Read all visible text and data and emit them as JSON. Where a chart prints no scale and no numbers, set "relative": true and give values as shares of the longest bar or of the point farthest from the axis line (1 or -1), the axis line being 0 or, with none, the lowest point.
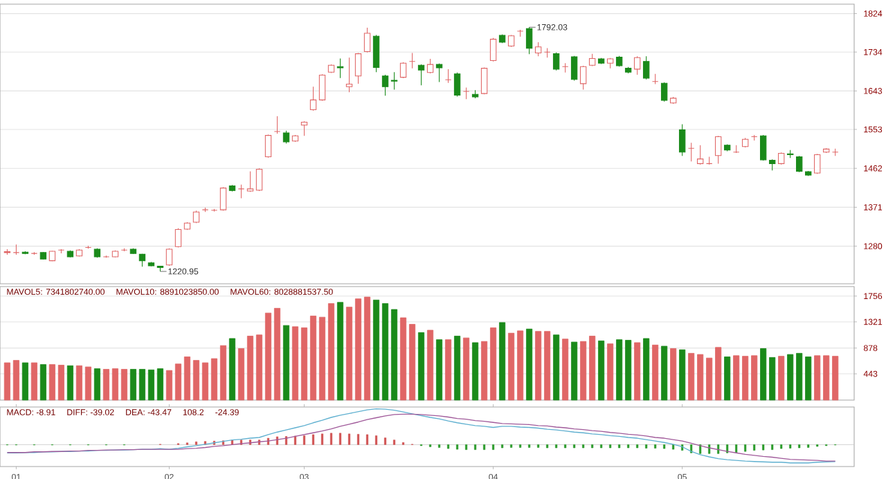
{
  "chart_data": [
    {
      "type": "candlestick",
      "categories": [
        null,
        "01",
        null,
        null,
        null,
        null,
        null,
        null,
        null,
        null,
        null,
        null,
        null,
        null,
        null,
        null,
        null,
        null,
        "02",
        null,
        null,
        null,
        null,
        null,
        null,
        null,
        null,
        null,
        null,
        null,
        null,
        null,
        null,
        "03",
        null,
        null,
        null,
        null,
        null,
        null,
        null,
        null,
        null,
        null,
        null,
        null,
        null,
        null,
        null,
        null,
        null,
        null,
        null,
        null,
        "04",
        null,
        null,
        null,
        null,
        null,
        null,
        null,
        null,
        null,
        null,
        null,
        null,
        null,
        null,
        null,
        null,
        null,
        null,
        null,
        null,
        "05",
        null,
        null,
        null,
        null,
        null,
        null,
        null,
        null,
        null,
        null,
        null,
        null,
        null,
        null,
        null,
        null,
        null
      ],
      "ohlc": [
        [
          1265,
          1273,
          1260,
          1267
        ],
        [
          1265,
          1284,
          1260,
          1265
        ],
        [
          1266,
          1268,
          1261,
          1263
        ],
        [
          1263,
          1266,
          1260,
          1263
        ],
        [
          1265,
          1266,
          1249,
          1250
        ],
        [
          1246,
          1269,
          1245,
          1268
        ],
        [
          1271,
          1273,
          1263,
          1271
        ],
        [
          1268,
          1270,
          1254,
          1255
        ],
        [
          1257,
          1273,
          1256,
          1271
        ],
        [
          1277,
          1281,
          1274,
          1277
        ],
        [
          1273,
          1275,
          1253,
          1255
        ],
        [
          1255,
          1258,
          1253,
          1255
        ],
        [
          1255,
          1270,
          1254,
          1268
        ],
        [
          1271,
          1275,
          1268,
          1271
        ],
        [
          1273,
          1275,
          1262,
          1263
        ],
        [
          1261,
          1262,
          1232,
          1246
        ],
        [
          1241,
          1243,
          1233,
          1234
        ],
        [
          1233,
          1234,
          1220.95,
          1230
        ],
        [
          1236,
          1275,
          1234,
          1273
        ],
        [
          1279,
          1322,
          1277,
          1319
        ],
        [
          1320,
          1336,
          1318,
          1334
        ],
        [
          1336,
          1363,
          1334,
          1360
        ],
        [
          1365,
          1370,
          1360,
          1365
        ],
        [
          1364,
          1367,
          1361,
          1364
        ],
        [
          1365,
          1418,
          1363,
          1416
        ],
        [
          1421,
          1423,
          1408,
          1410
        ],
        [
          1414,
          1424,
          1392,
          1414
        ],
        [
          1409,
          1455,
          1407,
          1414
        ],
        [
          1411,
          1462,
          1409,
          1460
        ],
        [
          1489,
          1541,
          1487,
          1539
        ],
        [
          1548,
          1584,
          1543,
          1548
        ],
        [
          1545,
          1550,
          1520,
          1524
        ],
        [
          1526,
          1540,
          1524,
          1538
        ],
        [
          1563,
          1572,
          1538,
          1570
        ],
        [
          1599,
          1653,
          1597,
          1622
        ],
        [
          1622,
          1682,
          1620,
          1680
        ],
        [
          1687,
          1705,
          1685,
          1703
        ],
        [
          1700,
          1719,
          1673,
          1697
        ],
        [
          1653,
          1721,
          1640,
          1659
        ],
        [
          1678,
          1732,
          1660,
          1730
        ],
        [
          1735,
          1791,
          1733,
          1778
        ],
        [
          1771,
          1774,
          1687,
          1698
        ],
        [
          1678,
          1681,
          1632,
          1653
        ],
        [
          1668,
          1687,
          1646,
          1666
        ],
        [
          1675,
          1710,
          1673,
          1708
        ],
        [
          1712,
          1732,
          1696,
          1712
        ],
        [
          1703,
          1705,
          1656,
          1692
        ],
        [
          1686,
          1718,
          1684,
          1705
        ],
        [
          1705,
          1707,
          1664,
          1697
        ],
        [
          1669,
          1694,
          1662,
          1669
        ],
        [
          1683,
          1686,
          1630,
          1633
        ],
        [
          1642,
          1651,
          1624,
          1642
        ],
        [
          1635,
          1645,
          1626,
          1629
        ],
        [
          1637,
          1698,
          1635,
          1696
        ],
        [
          1714,
          1767,
          1712,
          1764
        ],
        [
          1773,
          1775,
          1755,
          1757
        ],
        [
          1748,
          1774,
          1746,
          1772
        ],
        [
          1783,
          1786,
          1770,
          1783
        ],
        [
          1789,
          1792.03,
          1729,
          1743
        ],
        [
          1732,
          1757,
          1724,
          1746
        ],
        [
          1734,
          1743,
          1721,
          1734
        ],
        [
          1730,
          1733,
          1691,
          1694
        ],
        [
          1700,
          1708,
          1686,
          1700
        ],
        [
          1723,
          1725,
          1667,
          1670
        ],
        [
          1660,
          1702,
          1646,
          1700
        ],
        [
          1703,
          1730,
          1701,
          1719
        ],
        [
          1718,
          1720,
          1706,
          1708
        ],
        [
          1708,
          1720,
          1696,
          1718
        ],
        [
          1722,
          1725,
          1700,
          1702
        ],
        [
          1696,
          1699,
          1684,
          1687
        ],
        [
          1694,
          1724,
          1681,
          1721
        ],
        [
          1712,
          1724,
          1670,
          1673
        ],
        [
          1665,
          1683,
          1659,
          1665
        ],
        [
          1661,
          1663,
          1618,
          1621
        ],
        [
          1615,
          1629,
          1613,
          1626
        ],
        [
          1552,
          1565,
          1491,
          1500
        ],
        [
          1509,
          1522,
          1478,
          1509
        ],
        [
          1473,
          1516,
          1471,
          1484
        ],
        [
          1473,
          1489,
          1471,
          1473
        ],
        [
          1492,
          1538,
          1473,
          1536
        ],
        [
          1516,
          1518,
          1502,
          1505
        ],
        [
          1500,
          1516,
          1498,
          1500
        ],
        [
          1513,
          1533,
          1511,
          1530
        ],
        [
          1536,
          1540,
          1527,
          1536
        ],
        [
          1538,
          1540,
          1480,
          1482
        ],
        [
          1481,
          1483,
          1457,
          1473
        ],
        [
          1473,
          1499,
          1471,
          1497
        ],
        [
          1496,
          1505,
          1486,
          1494
        ],
        [
          1489,
          1491,
          1453,
          1455
        ],
        [
          1454,
          1456,
          1444,
          1446
        ],
        [
          1451,
          1496,
          1449,
          1494
        ],
        [
          1500,
          1509,
          1498,
          1507
        ],
        [
          1500,
          1508,
          1491,
          1500
        ]
      ],
      "colors": [
        "#e06666",
        "#e06666",
        "#1a8a1a",
        "#e06666",
        "#1a8a1a",
        "#e06666",
        "#e06666",
        "#1a8a1a",
        "#e06666",
        "#e06666",
        "#1a8a1a",
        "#e06666",
        "#e06666",
        "#e06666",
        "#1a8a1a",
        "#1a8a1a",
        "#1a8a1a",
        "#1a8a1a",
        "#e06666",
        "#e06666",
        "#e06666",
        "#e06666",
        "#e06666",
        "#e06666",
        "#e06666",
        "#1a8a1a",
        "#e06666",
        "#e06666",
        "#e06666",
        "#e06666",
        "#e06666",
        "#1a8a1a",
        "#e06666",
        "#e06666",
        "#e06666",
        "#e06666",
        "#e06666",
        "#1a8a1a",
        "#e06666",
        "#e06666",
        "#e06666",
        "#1a8a1a",
        "#1a8a1a",
        "#1a8a1a",
        "#e06666",
        "#e06666",
        "#1a8a1a",
        "#e06666",
        "#1a8a1a",
        "#e06666",
        "#1a8a1a",
        "#e06666",
        "#1a8a1a",
        "#e06666",
        "#e06666",
        "#1a8a1a",
        "#e06666",
        "#e06666",
        "#1a8a1a",
        "#e06666",
        "#e06666",
        "#1a8a1a",
        "#e06666",
        "#1a8a1a",
        "#e06666",
        "#e06666",
        "#1a8a1a",
        "#e06666",
        "#1a8a1a",
        "#1a8a1a",
        "#e06666",
        "#1a8a1a",
        "#e06666",
        "#1a8a1a",
        "#e06666",
        "#1a8a1a",
        "#e06666",
        "#e06666",
        "#e06666",
        "#e06666",
        "#1a8a1a",
        "#e06666",
        "#e06666",
        "#e06666",
        "#1a8a1a",
        "#1a8a1a",
        "#e06666",
        "#1a8a1a",
        "#1a8a1a",
        "#1a8a1a",
        "#e06666",
        "#e06666",
        "#e06666"
      ],
      "ylim": [
        1192,
        1846
      ],
      "yticks": [
        1280,
        1371,
        1462,
        1553,
        1643,
        1734,
        1824
      ],
      "grid": "y",
      "tick_labels": "y",
      "annotations": [
        "1792.03",
        "1220.95"
      ]
    },
    {
      "type": "bar",
      "categories": [
        null,
        "01",
        null,
        null,
        null,
        null,
        null,
        null,
        null,
        null,
        null,
        null,
        null,
        null,
        null,
        null,
        null,
        null,
        "02",
        null,
        null,
        null,
        null,
        null,
        null,
        null,
        null,
        null,
        null,
        null,
        null,
        null,
        null,
        "03",
        null,
        null,
        null,
        null,
        null,
        null,
        null,
        null,
        null,
        null,
        null,
        null,
        null,
        null,
        null,
        null,
        null,
        null,
        null,
        null,
        "04",
        null,
        null,
        null,
        null,
        null,
        null,
        null,
        null,
        null,
        null,
        null,
        null,
        null,
        null,
        null,
        null,
        null,
        null,
        null,
        null,
        "05",
        null,
        null,
        null,
        null,
        null,
        null,
        null,
        null,
        null,
        null,
        null,
        null,
        null,
        null,
        null,
        null,
        null
      ],
      "values": [
        630,
        670,
        630,
        630,
        600,
        600,
        590,
        580,
        580,
        560,
        530,
        520,
        530,
        520,
        520,
        520,
        510,
        530,
        500,
        610,
        730,
        670,
        630,
        700,
        920,
        1040,
        870,
        1080,
        1100,
        1470,
        1550,
        1260,
        1240,
        1220,
        1420,
        1400,
        1630,
        1650,
        1570,
        1710,
        1740,
        1690,
        1630,
        1530,
        1390,
        1280,
        1140,
        1180,
        1020,
        1020,
        1080,
        1050,
        970,
        990,
        1220,
        1310,
        1130,
        1170,
        1200,
        1160,
        1160,
        1100,
        1030,
        980,
        990,
        1080,
        1000,
        950,
        1020,
        1010,
        970,
        1040,
        930,
        910,
        870,
        850,
        790,
        770,
        710,
        890,
        730,
        750,
        740,
        750,
        870,
        720,
        740,
        770,
        790,
        730,
        750,
        750,
        740
      ],
      "colors": [
        "#e06666",
        "#e06666",
        "#1a8a1a",
        "#e06666",
        "#1a8a1a",
        "#e06666",
        "#e06666",
        "#1a8a1a",
        "#e06666",
        "#e06666",
        "#1a8a1a",
        "#e06666",
        "#e06666",
        "#e06666",
        "#1a8a1a",
        "#1a8a1a",
        "#1a8a1a",
        "#1a8a1a",
        "#e06666",
        "#e06666",
        "#e06666",
        "#e06666",
        "#e06666",
        "#e06666",
        "#e06666",
        "#1a8a1a",
        "#e06666",
        "#e06666",
        "#e06666",
        "#e06666",
        "#e06666",
        "#1a8a1a",
        "#e06666",
        "#e06666",
        "#e06666",
        "#e06666",
        "#e06666",
        "#1a8a1a",
        "#e06666",
        "#e06666",
        "#e06666",
        "#1a8a1a",
        "#1a8a1a",
        "#1a8a1a",
        "#e06666",
        "#e06666",
        "#1a8a1a",
        "#e06666",
        "#1a8a1a",
        "#e06666",
        "#1a8a1a",
        "#e06666",
        "#1a8a1a",
        "#e06666",
        "#e06666",
        "#1a8a1a",
        "#e06666",
        "#e06666",
        "#1a8a1a",
        "#e06666",
        "#e06666",
        "#1a8a1a",
        "#e06666",
        "#1a8a1a",
        "#e06666",
        "#e06666",
        "#1a8a1a",
        "#e06666",
        "#1a8a1a",
        "#1a8a1a",
        "#e06666",
        "#1a8a1a",
        "#e06666",
        "#1a8a1a",
        "#e06666",
        "#1a8a1a",
        "#e06666",
        "#e06666",
        "#e06666",
        "#e06666",
        "#1a8a1a",
        "#e06666",
        "#e06666",
        "#e06666",
        "#1a8a1a",
        "#1a8a1a",
        "#e06666",
        "#1a8a1a",
        "#1a8a1a",
        "#1a8a1a",
        "#e06666",
        "#e06666",
        "#e06666"
      ],
      "ylim": [
        0,
        1917
      ],
      "yticks": [
        443,
        878,
        1321,
        1756
      ],
      "grid": "y",
      "tick_labels": "y",
      "annotations": [
        "MAVOL5: 7341802740.00",
        "MAVOL10: 8891023850.00",
        "MAVOL60: 8028881537.50"
      ]
    },
    {
      "type": "line",
      "relative": true,
      "categories": [
        null,
        "01",
        null,
        null,
        null,
        null,
        null,
        null,
        null,
        null,
        null,
        null,
        null,
        null,
        null,
        null,
        null,
        null,
        "02",
        null,
        null,
        null,
        null,
        null,
        null,
        null,
        null,
        null,
        null,
        null,
        null,
        null,
        null,
        "03",
        null,
        null,
        null,
        null,
        null,
        null,
        null,
        null,
        null,
        null,
        null,
        null,
        null,
        null,
        null,
        null,
        null,
        null,
        null,
        null,
        "04",
        null,
        null,
        null,
        null,
        null,
        null,
        null,
        null,
        null,
        null,
        null,
        null,
        null,
        null,
        null,
        null,
        null,
        null,
        null,
        null,
        "05",
        null,
        null,
        null,
        null,
        null,
        null,
        null,
        null,
        null,
        null,
        null,
        null,
        null,
        null,
        null,
        null,
        null
      ],
      "series": [
        {
          "type": "bar",
          "color": "#d05050",
          "values": [
            null,
            null,
            null,
            null,
            null,
            null,
            null,
            null,
            null,
            null,
            null,
            null,
            null,
            null,
            null,
            null,
            null,
            0.01,
            null,
            0.03,
            0.05,
            0.08,
            0.09,
            0.1,
            0.11,
            0.13,
            0.13,
            0.13,
            0.13,
            0.18,
            0.22,
            0.23,
            0.24,
            0.25,
            0.28,
            0.3,
            0.32,
            0.32,
            0.3,
            0.29,
            0.28,
            0.25,
            0.19,
            0.13,
            0.06,
            0.01,
            null,
            null,
            null,
            null,
            null,
            null,
            null,
            null,
            null,
            null,
            null,
            null,
            null,
            null,
            null,
            null,
            null,
            null,
            null,
            null,
            null,
            null,
            null,
            null,
            null,
            null,
            null,
            null,
            null,
            null,
            null,
            null,
            null,
            null,
            null,
            null,
            null,
            null,
            null,
            null,
            null,
            null,
            null,
            null,
            null,
            null,
            null
          ]
        },
        {
          "type": "bar",
          "color": "#2a9a2a",
          "values": [
            -0.01,
            -0.01,
            null,
            -0.01,
            null,
            -0.01,
            null,
            -0.01,
            null,
            -0.01,
            null,
            -0.01,
            null,
            -0.01,
            null,
            null,
            null,
            null,
            null,
            null,
            null,
            null,
            null,
            null,
            null,
            null,
            null,
            null,
            null,
            null,
            null,
            null,
            null,
            null,
            null,
            null,
            null,
            null,
            null,
            null,
            null,
            null,
            null,
            null,
            null,
            null,
            -0.03,
            -0.06,
            -0.08,
            -0.11,
            -0.13,
            -0.14,
            -0.14,
            -0.14,
            -0.14,
            -0.09,
            -0.08,
            -0.08,
            -0.08,
            -0.08,
            -0.09,
            -0.09,
            -0.09,
            -0.09,
            -0.09,
            -0.09,
            -0.09,
            -0.09,
            -0.09,
            -0.09,
            -0.09,
            -0.1,
            -0.1,
            -0.11,
            -0.13,
            -0.16,
            -0.23,
            -0.25,
            -0.25,
            -0.25,
            -0.23,
            -0.22,
            -0.19,
            -0.16,
            -0.15,
            -0.14,
            -0.11,
            -0.1,
            -0.09,
            -0.08,
            -0.05,
            -0.03,
            -0.01
          ]
        },
        {
          "color": "#5fb0d0",
          "values": [
            -0.23,
            -0.23,
            -0.22,
            -0.22,
            -0.2,
            -0.2,
            -0.19,
            -0.19,
            -0.18,
            -0.18,
            -0.16,
            -0.16,
            -0.15,
            -0.15,
            -0.14,
            -0.13,
            -0.13,
            -0.11,
            -0.13,
            -0.1,
            -0.06,
            -0.03,
            0.01,
            0.05,
            0.09,
            0.13,
            0.15,
            0.18,
            0.2,
            0.28,
            0.35,
            0.41,
            0.47,
            0.53,
            0.61,
            0.68,
            0.76,
            0.82,
            0.87,
            0.92,
            0.97,
            1,
            0.99,
            0.96,
            0.91,
            0.86,
            0.81,
            0.76,
            0.72,
            0.66,
            0.61,
            0.57,
            0.53,
            0.51,
            0.48,
            0.51,
            0.51,
            0.49,
            0.48,
            0.46,
            0.43,
            0.41,
            0.38,
            0.35,
            0.33,
            0.3,
            0.28,
            0.25,
            0.23,
            0.2,
            0.18,
            0.14,
            0.1,
            0.06,
            0.01,
            -0.06,
            -0.19,
            -0.28,
            -0.34,
            -0.39,
            -0.42,
            -0.44,
            -0.46,
            -0.47,
            -0.48,
            -0.49,
            -0.49,
            -0.51,
            -0.51,
            -0.51,
            -0.49,
            -0.48,
            -0.47
          ]
        },
        {
          "color": "#a05a9a",
          "values": [
            -0.22,
            -0.22,
            -0.22,
            -0.2,
            -0.2,
            -0.19,
            -0.19,
            -0.18,
            -0.18,
            -0.16,
            -0.16,
            -0.15,
            -0.15,
            -0.14,
            -0.14,
            -0.13,
            -0.13,
            -0.13,
            -0.13,
            -0.13,
            -0.11,
            -0.1,
            -0.08,
            -0.05,
            -0.03,
            0,
            0.03,
            0.05,
            0.08,
            0.1,
            0.14,
            0.18,
            0.23,
            0.28,
            0.33,
            0.38,
            0.44,
            0.51,
            0.57,
            0.63,
            0.7,
            0.75,
            0.8,
            0.84,
            0.85,
            0.85,
            0.84,
            0.82,
            0.8,
            0.77,
            0.73,
            0.71,
            0.67,
            0.65,
            0.62,
            0.59,
            0.58,
            0.57,
            0.56,
            0.53,
            0.52,
            0.49,
            0.47,
            0.44,
            0.42,
            0.39,
            0.37,
            0.34,
            0.32,
            0.29,
            0.27,
            0.24,
            0.2,
            0.18,
            0.14,
            0.1,
            0.04,
            -0.03,
            -0.09,
            -0.14,
            -0.19,
            -0.23,
            -0.27,
            -0.3,
            -0.33,
            -0.35,
            -0.38,
            -0.41,
            -0.42,
            -0.43,
            -0.44,
            -0.46,
            -0.46
          ]
        }
      ],
      "annotations": [
        "MACD: -8.91",
        "DIFF: -39.02",
        "DEA: -43.47",
        "108.2",
        "-24.39"
      ]
    }
  ]
}
